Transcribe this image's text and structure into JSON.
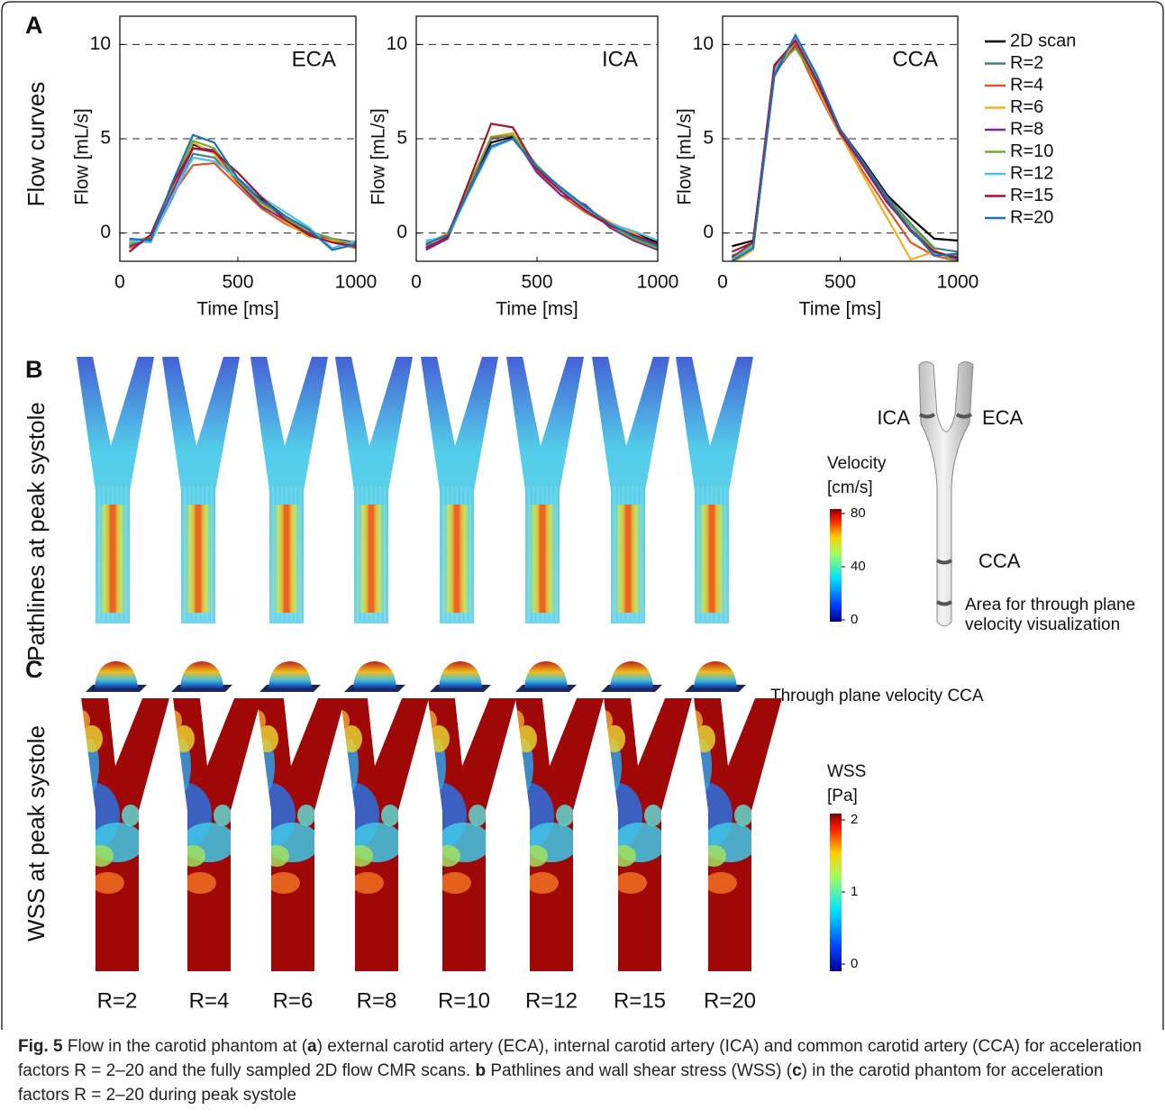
{
  "chart_data": [
    {
      "type": "line",
      "title": "ECA",
      "xlabel": "Time [ms]",
      "ylabel": "Flow [mL/s]",
      "x": [
        40,
        130,
        220,
        310,
        400,
        500,
        600,
        700,
        800,
        900,
        1000
      ],
      "xlim": [
        0,
        1000
      ],
      "xticks": [
        0,
        500,
        1000
      ],
      "ylim": [
        -1.5,
        11.5
      ],
      "yticks": [
        0,
        5,
        10
      ],
      "grid": true,
      "series": [
        {
          "name": "2D scan",
          "color": "#000000",
          "values": [
            -0.5,
            -0.2,
            2.2,
            4.7,
            4.3,
            2.9,
            1.8,
            0.9,
            0.1,
            -0.3,
            -0.6
          ]
        },
        {
          "name": "R=2",
          "color": "#4a7a8c",
          "values": [
            -0.6,
            -0.4,
            1.8,
            4.2,
            4.0,
            2.7,
            1.7,
            0.8,
            0.0,
            -0.4,
            -0.7
          ]
        },
        {
          "name": "R=4",
          "color": "#e0552a",
          "values": [
            -0.8,
            -0.3,
            2.0,
            3.6,
            3.7,
            2.5,
            1.3,
            0.5,
            -0.1,
            -0.5,
            -0.8
          ]
        },
        {
          "name": "R=6",
          "color": "#f0b020",
          "values": [
            -0.5,
            -0.2,
            2.3,
            4.8,
            4.2,
            2.6,
            1.5,
            0.6,
            -0.2,
            -0.4,
            -0.5
          ]
        },
        {
          "name": "R=8",
          "color": "#7b2d8e",
          "values": [
            -0.7,
            -0.3,
            2.1,
            4.5,
            4.4,
            2.7,
            1.4,
            0.7,
            0.0,
            -0.3,
            -0.5
          ]
        },
        {
          "name": "R=10",
          "color": "#77ac30",
          "values": [
            -0.6,
            -0.2,
            2.4,
            4.9,
            4.5,
            2.8,
            1.6,
            0.8,
            0.1,
            -0.3,
            -0.6
          ]
        },
        {
          "name": "R=12",
          "color": "#4dbeee",
          "values": [
            -0.4,
            -0.5,
            1.9,
            4.0,
            3.8,
            2.9,
            1.9,
            1.1,
            0.3,
            -0.8,
            -0.4
          ]
        },
        {
          "name": "R=15",
          "color": "#a2142f",
          "values": [
            -1.0,
            -0.1,
            2.5,
            4.5,
            4.3,
            3.2,
            1.9,
            0.7,
            -0.1,
            -0.5,
            -0.7
          ]
        },
        {
          "name": "R=20",
          "color": "#1f6fb5",
          "values": [
            -0.3,
            -0.4,
            2.6,
            5.2,
            4.8,
            2.9,
            1.7,
            0.9,
            0.2,
            -0.9,
            -0.6
          ]
        }
      ]
    },
    {
      "type": "line",
      "title": "ICA",
      "xlabel": "Time [ms]",
      "ylabel": "Flow [mL/s]",
      "x": [
        40,
        130,
        220,
        310,
        400,
        500,
        600,
        700,
        800,
        900,
        1000
      ],
      "xlim": [
        0,
        1000
      ],
      "xticks": [
        0,
        500,
        1000
      ],
      "ylim": [
        -1.5,
        11.5
      ],
      "yticks": [
        0,
        5,
        10
      ],
      "grid": true,
      "series": [
        {
          "name": "2D scan",
          "color": "#000000",
          "values": [
            -0.5,
            -0.1,
            2.5,
            4.8,
            5.1,
            3.5,
            2.3,
            1.3,
            0.5,
            0.0,
            -0.5
          ]
        },
        {
          "name": "R=2",
          "color": "#4a7a8c",
          "values": [
            -0.7,
            -0.3,
            2.3,
            4.6,
            5.0,
            3.4,
            2.4,
            1.4,
            0.5,
            -0.1,
            -0.6
          ]
        },
        {
          "name": "R=4",
          "color": "#e0552a",
          "values": [
            -0.8,
            -0.2,
            2.6,
            5.0,
            5.2,
            3.3,
            2.0,
            1.1,
            0.4,
            -0.2,
            -0.8
          ]
        },
        {
          "name": "R=6",
          "color": "#f0b020",
          "values": [
            -0.6,
            0.0,
            2.4,
            5.1,
            5.3,
            3.5,
            2.2,
            1.3,
            0.6,
            0.0,
            -0.7
          ]
        },
        {
          "name": "R=8",
          "color": "#7b2d8e",
          "values": [
            -0.9,
            -0.3,
            2.5,
            5.0,
            5.2,
            3.2,
            2.0,
            1.5,
            0.3,
            -0.4,
            -0.9
          ]
        },
        {
          "name": "R=10",
          "color": "#77ac30",
          "values": [
            -0.5,
            -0.1,
            2.6,
            5.1,
            5.2,
            3.6,
            2.3,
            1.2,
            0.4,
            -0.3,
            -0.8
          ]
        },
        {
          "name": "R=12",
          "color": "#4dbeee",
          "values": [
            -0.4,
            -0.2,
            2.2,
            4.5,
            5.0,
            3.5,
            2.3,
            1.3,
            0.5,
            0.1,
            -0.4
          ]
        },
        {
          "name": "R=15",
          "color": "#a2142f",
          "values": [
            -0.8,
            -0.2,
            2.8,
            5.8,
            5.6,
            3.4,
            2.2,
            1.2,
            0.4,
            -0.1,
            -0.6
          ]
        },
        {
          "name": "R=20",
          "color": "#1f6fb5",
          "values": [
            -0.6,
            -0.1,
            2.3,
            4.6,
            5.0,
            3.5,
            2.4,
            1.4,
            0.5,
            -0.2,
            -0.7
          ]
        }
      ]
    },
    {
      "type": "line",
      "title": "CCA",
      "xlabel": "Time [ms]",
      "ylabel": "Flow [mL/s]",
      "legend": "outside-right",
      "x": [
        40,
        130,
        220,
        310,
        400,
        500,
        600,
        700,
        800,
        900,
        1000
      ],
      "xlim": [
        0,
        1000
      ],
      "xticks": [
        0,
        500,
        1000
      ],
      "ylim": [
        -1.5,
        11.5
      ],
      "yticks": [
        0,
        5,
        10
      ],
      "grid": true,
      "series": [
        {
          "name": "2D scan",
          "color": "#000000",
          "values": [
            -0.7,
            -0.4,
            8.5,
            10.0,
            8.0,
            5.5,
            3.8,
            2.0,
            0.8,
            -0.3,
            -0.4
          ]
        },
        {
          "name": "R=2",
          "color": "#4a7a8c",
          "values": [
            -1.2,
            -0.8,
            8.3,
            10.3,
            8.2,
            5.4,
            3.7,
            1.9,
            0.5,
            -0.8,
            -1.0
          ]
        },
        {
          "name": "R=4",
          "color": "#e0552a",
          "values": [
            -1.5,
            -0.6,
            8.8,
            10.0,
            7.6,
            5.2,
            3.2,
            1.3,
            -0.5,
            -1.2,
            -1.5
          ]
        },
        {
          "name": "R=6",
          "color": "#f0b020",
          "values": [
            -1.6,
            -0.9,
            8.6,
            10.2,
            7.8,
            5.2,
            3.0,
            0.8,
            -1.4,
            -1.0,
            -1.3
          ]
        },
        {
          "name": "R=8",
          "color": "#7b2d8e",
          "values": [
            -1.3,
            -0.5,
            8.5,
            9.9,
            8.0,
            5.3,
            3.5,
            1.6,
            0.2,
            -1.0,
            -1.4
          ]
        },
        {
          "name": "R=10",
          "color": "#77ac30",
          "values": [
            -1.4,
            -0.6,
            8.7,
            9.8,
            8.1,
            5.4,
            3.6,
            1.8,
            0.4,
            -0.9,
            -1.6
          ]
        },
        {
          "name": "R=12",
          "color": "#4dbeee",
          "values": [
            -1.5,
            -0.7,
            8.6,
            10.4,
            8.3,
            5.5,
            3.7,
            1.7,
            0.1,
            -1.1,
            -1.2
          ]
        },
        {
          "name": "R=15",
          "color": "#a2142f",
          "values": [
            -1.0,
            -0.5,
            8.9,
            10.2,
            8.1,
            5.4,
            3.6,
            1.7,
            0.1,
            -1.0,
            -1.3
          ]
        },
        {
          "name": "R=20",
          "color": "#1f6fb5",
          "values": [
            -1.5,
            -0.8,
            8.4,
            10.5,
            8.4,
            5.5,
            3.7,
            1.8,
            0.2,
            -1.2,
            -1.1
          ]
        }
      ]
    }
  ],
  "panel_a": {
    "label": "A",
    "title": "Flow curves"
  },
  "panel_b": {
    "label": "B",
    "title": "Pathlines at peak systole",
    "colorbar": {
      "title": "Velocity",
      "unit": "[cm/s]",
      "lim": [
        0,
        80
      ],
      "ticks": [
        0,
        40,
        80
      ]
    },
    "model_labels": {
      "ica": "ICA",
      "eca": "ECA",
      "cca": "CCA",
      "area_1": "Area for through plane",
      "area_2": "velocity visualization"
    },
    "profile_label": "Through plane velocity CCA"
  },
  "panel_c": {
    "label": "C",
    "title": "WSS at peak systole",
    "colorbar": {
      "title": "WSS",
      "unit": "[Pa]",
      "lim": [
        0,
        2
      ],
      "ticks": [
        0,
        1,
        2
      ]
    },
    "factors": [
      "R=2",
      "R=4",
      "R=6",
      "R=8",
      "R=10",
      "R=12",
      "R=15",
      "R=20"
    ]
  },
  "caption": {
    "label": "Fig. 5",
    "parts": [
      " Flow in the carotid phantom at (",
      "a",
      ") external carotid artery (ECA), internal carotid artery (ICA) and common carotid artery (CCA) for acceleration factors R = 2–20 and the fully sampled 2D flow CMR scans. ",
      "b",
      " Pathlines and wall shear stress (WSS) (",
      "c",
      ") in the carotid phantom for acceleration factors R = 2–20 during peak systole"
    ]
  }
}
